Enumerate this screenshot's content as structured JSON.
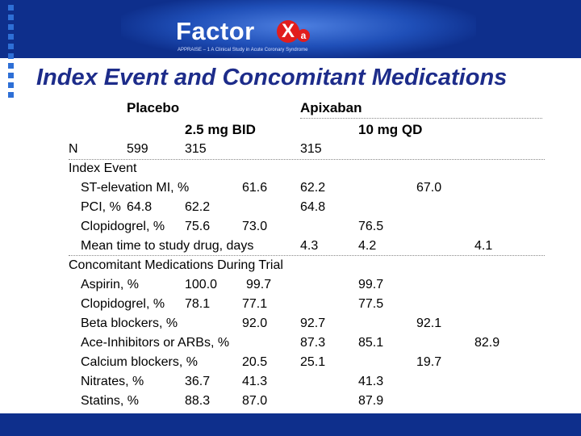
{
  "header": {
    "logo_text": "Factor",
    "logo_x": "X",
    "logo_a": "a",
    "tagline": "APPRAISE – 1   A Clinical Study in Acute Coronary Syndrome"
  },
  "title": "Index Event and Concomitant Medications",
  "columns": {
    "placebo": "Placebo",
    "apixaban": "Apixaban",
    "dose_low": "2.5 mg BID",
    "dose_high": "10 mg QD"
  },
  "rows": {
    "n": {
      "label": "N",
      "placebo": "599",
      "low": "315",
      "high": "315"
    },
    "index_event_heading": "Index Event",
    "ste_mi": {
      "label": "ST-elevation MI, %",
      "placebo": "61.6",
      "low": "62.2",
      "high": "67.0"
    },
    "pci": {
      "label": "PCI, %",
      "placebo": "64.8",
      "low": "62.2",
      "high": "64.8"
    },
    "clopidogrel_index": {
      "label": "Clopidogrel, %",
      "placebo": "75.6",
      "low": "73.0",
      "high": "76.5"
    },
    "mean_time": {
      "label": "Mean time to study drug, days",
      "placebo": "4.3",
      "low": "4.2",
      "high": "4.1"
    },
    "concomitant_heading": "Concomitant Medications During Trial",
    "aspirin": {
      "label": "Aspirin, %",
      "placebo": "100.0",
      "low": "99.7",
      "high": "99.7"
    },
    "clopidogrel_trial": {
      "label": "Clopidogrel, %",
      "placebo": "78.1",
      "low": "77.1",
      "high": "77.5"
    },
    "beta_blockers": {
      "label": "Beta blockers, %",
      "placebo": "92.0",
      "low": "92.7",
      "high": "92.1"
    },
    "ace_inhibitors": {
      "label": "Ace-Inhibitors or ARBs, %",
      "placebo": "87.3",
      "low": "85.1",
      "high": "82.9"
    },
    "calcium_blockers": {
      "label": "Calcium blockers, %",
      "placebo": "20.5",
      "low": "25.1",
      "high": "19.7"
    },
    "nitrates": {
      "label": "Nitrates, %",
      "placebo": "36.7",
      "low": "41.3",
      "high": "41.3"
    },
    "statins": {
      "label": "Statins, %",
      "placebo": "88.3",
      "low": "87.0",
      "high": "87.9"
    }
  }
}
